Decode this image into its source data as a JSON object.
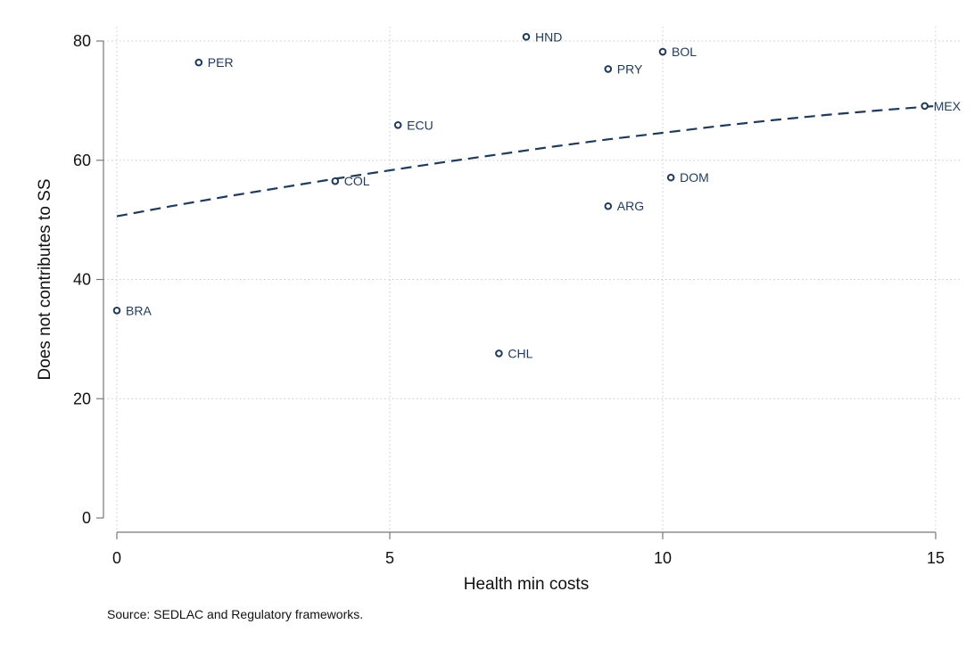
{
  "chart_data": {
    "type": "scatter",
    "xlabel": "Health min costs",
    "ylabel": "Does not contributes to SS",
    "xlim": [
      0,
      15
    ],
    "ylim": [
      0,
      80
    ],
    "xticks": [
      0,
      5,
      10,
      15
    ],
    "yticks": [
      0,
      20,
      40,
      60,
      80
    ],
    "grid": true,
    "point_color": "#1f3a5a",
    "points": [
      {
        "label": "BRA",
        "x": 0,
        "y": 34.8
      },
      {
        "label": "PER",
        "x": 1.5,
        "y": 76.4
      },
      {
        "label": "COL",
        "x": 4.0,
        "y": 56.5
      },
      {
        "label": "ECU",
        "x": 5.15,
        "y": 65.9
      },
      {
        "label": "CHL",
        "x": 7.0,
        "y": 27.6
      },
      {
        "label": "HND",
        "x": 7.5,
        "y": 80.7
      },
      {
        "label": "PRY",
        "x": 9.0,
        "y": 75.3
      },
      {
        "label": "ARG",
        "x": 9.0,
        "y": 52.3
      },
      {
        "label": "BOL",
        "x": 10.0,
        "y": 78.2
      },
      {
        "label": "DOM",
        "x": 10.15,
        "y": 57.1
      },
      {
        "label": "MEX",
        "x": 14.8,
        "y": 69.1
      }
    ],
    "fit_line": {
      "style": "dashed",
      "x": [
        0,
        1,
        2,
        3,
        4,
        5,
        6,
        7,
        8,
        9,
        10,
        11,
        12,
        13,
        14,
        15
      ],
      "y": [
        50.6,
        52.3,
        53.9,
        55.4,
        56.9,
        58.3,
        59.7,
        61.0,
        62.3,
        63.5,
        64.6,
        65.7,
        66.7,
        67.6,
        68.4,
        69.1
      ]
    }
  },
  "note": "Source: SEDLAC and Regulatory frameworks."
}
